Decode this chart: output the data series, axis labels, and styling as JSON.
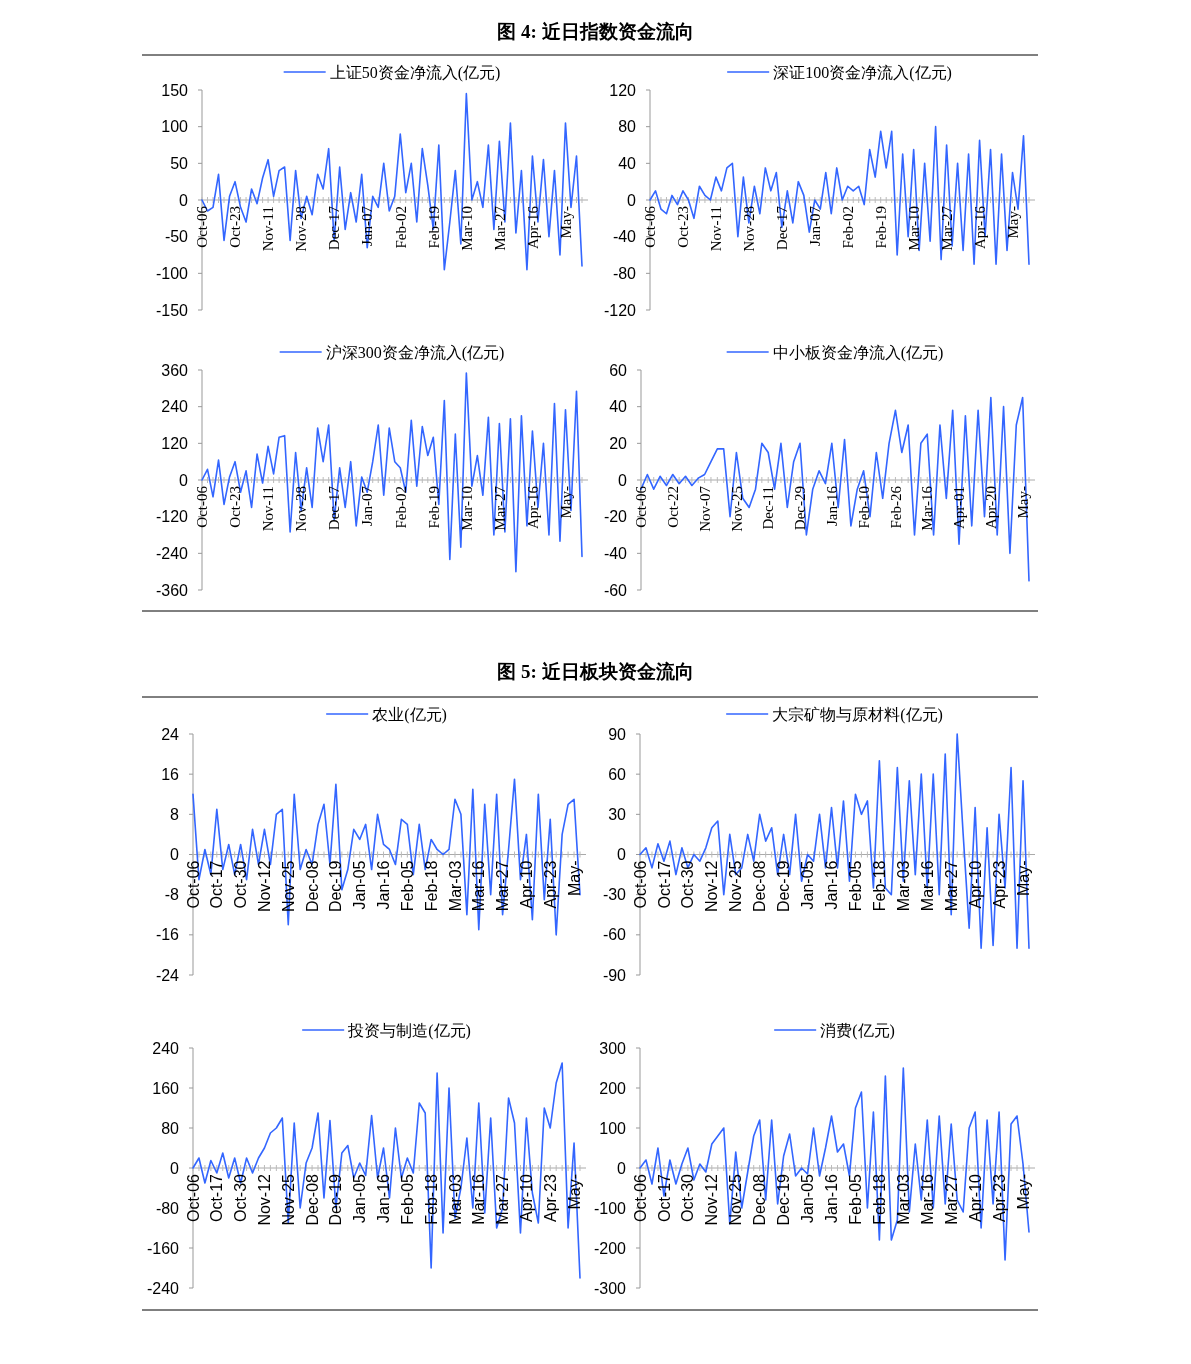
{
  "chart_data": [
    {
      "type": "line",
      "title": "图 4: 近日指数资金流向",
      "legend": "top",
      "ylim": [
        -150,
        150
      ],
      "yticks": [
        -150,
        -100,
        -50,
        0,
        50,
        100,
        150
      ],
      "categories": [
        "Oct-06",
        null,
        null,
        null,
        null,
        null,
        "Oct-23",
        null,
        null,
        null,
        null,
        null,
        "Nov-11",
        null,
        null,
        null,
        null,
        null,
        "Nov-28",
        null,
        null,
        null,
        null,
        null,
        "Dec-17",
        null,
        null,
        null,
        null,
        null,
        "Jan-07",
        null,
        null,
        null,
        null,
        null,
        "Feb-02",
        null,
        null,
        null,
        null,
        null,
        "Feb-19",
        null,
        null,
        null,
        null,
        null,
        "Mar-10",
        null,
        null,
        null,
        null,
        null,
        "Mar-27",
        null,
        null,
        null,
        null,
        null,
        "Apr-16",
        null,
        null,
        null,
        null,
        null,
        "May-",
        null,
        null,
        null
      ],
      "series": [
        {
          "name": "上证50资金净流入(亿元)",
          "color": "#3366ff",
          "values": [
            0,
            -15,
            -10,
            35,
            -55,
            5,
            25,
            -10,
            -30,
            15,
            -5,
            30,
            55,
            5,
            40,
            45,
            -55,
            40,
            -25,
            5,
            -20,
            35,
            15,
            70,
            -55,
            45,
            -40,
            10,
            -30,
            35,
            -65,
            5,
            -10,
            50,
            -15,
            5,
            90,
            10,
            50,
            -30,
            70,
            20,
            -40,
            75,
            -95,
            -30,
            40,
            -60,
            145,
            0,
            25,
            -10,
            75,
            -40,
            80,
            -30,
            105,
            -45,
            40,
            -95,
            60,
            -30,
            55,
            -50,
            40,
            -75,
            105,
            -10,
            60,
            -90
          ]
        }
      ]
    },
    {
      "type": "line",
      "legend": "top",
      "ylim": [
        -120,
        120
      ],
      "yticks": [
        -120,
        -80,
        -40,
        0,
        40,
        80,
        120
      ],
      "categories": [
        "Oct-06",
        null,
        null,
        null,
        null,
        null,
        "Oct-23",
        null,
        null,
        null,
        null,
        null,
        "Nov-11",
        null,
        null,
        null,
        null,
        null,
        "Nov-28",
        null,
        null,
        null,
        null,
        null,
        "Dec-17",
        null,
        null,
        null,
        null,
        null,
        "Jan-07",
        null,
        null,
        null,
        null,
        null,
        "Feb-02",
        null,
        null,
        null,
        null,
        null,
        "Feb-19",
        null,
        null,
        null,
        null,
        null,
        "Mar-10",
        null,
        null,
        null,
        null,
        null,
        "Mar-27",
        null,
        null,
        null,
        null,
        null,
        "Apr-16",
        null,
        null,
        null,
        null,
        null,
        "May-",
        null,
        null,
        null
      ],
      "series": [
        {
          "name": "深证100资金净流入(亿元)",
          "color": "#3366ff",
          "values": [
            0,
            10,
            -10,
            -15,
            5,
            -5,
            10,
            0,
            -20,
            15,
            5,
            0,
            25,
            10,
            35,
            40,
            -40,
            25,
            -25,
            15,
            -15,
            35,
            10,
            30,
            -30,
            10,
            -25,
            20,
            5,
            -35,
            0,
            -10,
            30,
            -15,
            35,
            0,
            15,
            10,
            15,
            -5,
            55,
            25,
            75,
            35,
            75,
            -60,
            50,
            -40,
            55,
            -55,
            40,
            -45,
            80,
            -65,
            60,
            -50,
            40,
            -55,
            50,
            -70,
            65,
            -40,
            55,
            -70,
            50,
            -55,
            30,
            -10,
            70,
            -70
          ]
        }
      ]
    },
    {
      "type": "line",
      "legend": "top",
      "ylim": [
        -360,
        360
      ],
      "yticks": [
        -360,
        -240,
        -120,
        0,
        120,
        240,
        360
      ],
      "categories": [
        "Oct-06",
        null,
        null,
        null,
        null,
        null,
        "Oct-23",
        null,
        null,
        null,
        null,
        null,
        "Nov-11",
        null,
        null,
        null,
        null,
        null,
        "Nov-28",
        null,
        null,
        null,
        null,
        null,
        "Dec-17",
        null,
        null,
        null,
        null,
        null,
        "Jan-07",
        null,
        null,
        null,
        null,
        null,
        "Feb-02",
        null,
        null,
        null,
        null,
        null,
        "Feb-19",
        null,
        null,
        null,
        null,
        null,
        "Mar-10",
        null,
        null,
        null,
        null,
        null,
        "Mar-27",
        null,
        null,
        null,
        null,
        null,
        "Apr-16",
        null,
        null,
        null,
        null,
        null,
        "May-",
        null,
        null,
        null
      ],
      "series": [
        {
          "name": "沪深300资金净流入(亿元)",
          "color": "#3366ff",
          "values": [
            0,
            35,
            -55,
            65,
            -80,
            10,
            60,
            -40,
            30,
            -90,
            85,
            -10,
            110,
            20,
            140,
            145,
            -170,
            90,
            -100,
            40,
            -90,
            170,
            60,
            180,
            -130,
            40,
            -90,
            60,
            -150,
            10,
            -40,
            60,
            180,
            -50,
            170,
            60,
            40,
            -40,
            195,
            -20,
            175,
            80,
            140,
            -80,
            260,
            -260,
            150,
            -220,
            350,
            -20,
            80,
            -50,
            205,
            -180,
            185,
            -170,
            200,
            -300,
            210,
            -150,
            160,
            -90,
            120,
            -180,
            250,
            -200,
            230,
            -100,
            290,
            -250
          ]
        }
      ]
    },
    {
      "type": "line",
      "legend": "top",
      "ylim": [
        -60,
        60
      ],
      "yticks": [
        -60,
        -40,
        -20,
        0,
        20,
        40,
        60
      ],
      "categories": [
        "Oct-06",
        null,
        null,
        null,
        null,
        "Oct-22",
        null,
        null,
        null,
        null,
        "Nov-07",
        null,
        null,
        null,
        null,
        "Nov-25",
        null,
        null,
        null,
        null,
        "Dec-11",
        null,
        null,
        null,
        null,
        "Dec-29",
        null,
        null,
        null,
        null,
        "Jan-16",
        null,
        null,
        null,
        null,
        "Feb-10",
        null,
        null,
        null,
        null,
        "Feb-26",
        null,
        null,
        null,
        null,
        "Mar-16",
        null,
        null,
        null,
        null,
        "Apr-01",
        null,
        null,
        null,
        null,
        "Apr-20",
        null,
        null,
        null,
        null,
        "May-",
        null
      ],
      "series": [
        {
          "name": "中小板资金净流入(亿元)",
          "color": "#3366ff",
          "values": [
            -5,
            3,
            -5,
            2,
            -3,
            3,
            -2,
            2,
            -3,
            1,
            3,
            10,
            17,
            17,
            -20,
            15,
            -10,
            -15,
            -5,
            20,
            15,
            -5,
            20,
            -15,
            10,
            20,
            -30,
            -5,
            5,
            -2,
            20,
            -15,
            22,
            -25,
            -5,
            5,
            -20,
            15,
            -10,
            20,
            38,
            15,
            30,
            -30,
            20,
            25,
            -30,
            30,
            -10,
            38,
            -35,
            35,
            -25,
            38,
            -20,
            45,
            -30,
            40,
            -40,
            30,
            45,
            -55
          ]
        }
      ]
    },
    {
      "type": "line",
      "title": "图 5: 近日板块资金流向",
      "legend": "top",
      "ylim": [
        -24,
        24
      ],
      "yticks": [
        -24,
        -16,
        -8,
        0,
        8,
        16,
        24
      ],
      "categories": [
        "Oct-06",
        null,
        null,
        null,
        "Oct-17",
        null,
        null,
        null,
        "Oct-30",
        null,
        null,
        null,
        "Nov-12",
        null,
        null,
        null,
        "Nov-25",
        null,
        null,
        null,
        "Dec-08",
        null,
        null,
        null,
        "Dec-19",
        null,
        null,
        null,
        "Jan-05",
        null,
        null,
        null,
        "Jan-16",
        null,
        null,
        null,
        "Feb-05",
        null,
        null,
        null,
        "Feb-18",
        null,
        null,
        null,
        "Mar-03",
        null,
        null,
        null,
        "Mar-16",
        null,
        null,
        null,
        "Mar-27",
        null,
        null,
        null,
        "Apr-10",
        null,
        null,
        null,
        "Apr-23",
        null,
        null,
        null,
        "May-",
        null
      ],
      "series": [
        {
          "name": "农业(亿元)",
          "color": "#3366ff",
          "values": [
            12,
            -5,
            1,
            -4,
            9,
            -3,
            2,
            -4,
            2,
            -5,
            5,
            -2,
            5,
            -2,
            8,
            9,
            -14,
            12,
            -3,
            1,
            -2,
            6,
            10,
            -2,
            14,
            -7,
            -3,
            5,
            3,
            6,
            -3,
            8,
            2,
            1,
            -2,
            7,
            6,
            -4,
            6,
            -3,
            3,
            1,
            0,
            1,
            11,
            8,
            -12,
            13,
            -15,
            10,
            -8,
            12,
            -12,
            1,
            15,
            -5,
            4,
            -13,
            12,
            -9,
            7,
            -16,
            4,
            10,
            11,
            -8
          ]
        }
      ]
    },
    {
      "type": "line",
      "legend": "top",
      "ylim": [
        -90,
        90
      ],
      "yticks": [
        -90,
        -60,
        -30,
        0,
        30,
        60,
        90
      ],
      "categories": [
        "Oct-06",
        null,
        null,
        null,
        "Oct-17",
        null,
        null,
        null,
        "Oct-30",
        null,
        null,
        null,
        "Nov-12",
        null,
        null,
        null,
        "Nov-25",
        null,
        null,
        null,
        "Dec-08",
        null,
        null,
        null,
        "Dec-19",
        null,
        null,
        null,
        "Jan-05",
        null,
        null,
        null,
        "Jan-16",
        null,
        null,
        null,
        "Feb-05",
        null,
        null,
        null,
        "Feb-18",
        null,
        null,
        null,
        "Mar-03",
        null,
        null,
        null,
        "Mar-16",
        null,
        null,
        null,
        "Mar-27",
        null,
        null,
        null,
        "Apr-10",
        null,
        null,
        null,
        "Apr-23",
        null,
        null,
        null,
        "May-",
        null
      ],
      "series": [
        {
          "name": "大宗矿物与原材料(亿元)",
          "color": "#3366ff",
          "values": [
            0,
            5,
            -10,
            8,
            -5,
            10,
            -15,
            5,
            -10,
            0,
            -5,
            5,
            20,
            25,
            -30,
            15,
            -15,
            -10,
            15,
            -5,
            30,
            10,
            20,
            -15,
            15,
            -15,
            30,
            -20,
            0,
            -5,
            30,
            -10,
            35,
            -10,
            40,
            -20,
            45,
            30,
            40,
            -25,
            70,
            -25,
            -30,
            65,
            -20,
            55,
            -15,
            60,
            -25,
            60,
            -30,
            75,
            -45,
            90,
            15,
            -55,
            35,
            -70,
            20,
            -68,
            30,
            -25,
            65,
            -70,
            55,
            -70
          ]
        }
      ]
    },
    {
      "type": "line",
      "legend": "top",
      "ylim": [
        -240,
        240
      ],
      "yticks": [
        -240,
        -160,
        -80,
        0,
        80,
        160,
        240
      ],
      "categories": [
        "Oct-06",
        null,
        null,
        null,
        "Oct-17",
        null,
        null,
        null,
        "Oct-30",
        null,
        null,
        null,
        "Nov-12",
        null,
        null,
        null,
        "Nov-25",
        null,
        null,
        null,
        "Dec-08",
        null,
        null,
        null,
        "Dec-19",
        null,
        null,
        null,
        "Jan-05",
        null,
        null,
        null,
        "Jan-16",
        null,
        null,
        null,
        "Feb-05",
        null,
        null,
        null,
        "Feb-18",
        null,
        null,
        null,
        "Mar-03",
        null,
        null,
        null,
        "Mar-16",
        null,
        null,
        null,
        "Mar-27",
        null,
        null,
        null,
        "Apr-10",
        null,
        null,
        null,
        "Apr-23",
        null,
        null,
        null,
        "May-",
        null
      ],
      "series": [
        {
          "name": "投资与制造(亿元)",
          "color": "#3366ff",
          "values": [
            0,
            20,
            -30,
            15,
            -10,
            30,
            -20,
            20,
            -30,
            20,
            -10,
            20,
            40,
            70,
            80,
            100,
            -110,
            90,
            -80,
            10,
            40,
            110,
            -60,
            95,
            -80,
            30,
            45,
            -20,
            10,
            -15,
            105,
            -20,
            40,
            -60,
            80,
            -20,
            20,
            -10,
            130,
            110,
            -200,
            190,
            -130,
            160,
            -100,
            -40,
            60,
            -80,
            130,
            -90,
            100,
            -120,
            -80,
            140,
            90,
            -130,
            100,
            -50,
            -110,
            120,
            80,
            170,
            210,
            -120,
            50,
            -220
          ]
        }
      ]
    },
    {
      "type": "line",
      "legend": "top",
      "ylim": [
        -300,
        300
      ],
      "yticks": [
        -300,
        -200,
        -100,
        0,
        100,
        200,
        300
      ],
      "categories": [
        "Oct-06",
        null,
        null,
        null,
        "Oct-17",
        null,
        null,
        null,
        "Oct-30",
        null,
        null,
        null,
        "Nov-12",
        null,
        null,
        null,
        "Nov-25",
        null,
        null,
        null,
        "Dec-08",
        null,
        null,
        null,
        "Dec-19",
        null,
        null,
        null,
        "Jan-05",
        null,
        null,
        null,
        "Jan-16",
        null,
        null,
        null,
        "Feb-05",
        null,
        null,
        null,
        "Feb-18",
        null,
        null,
        null,
        "Mar-03",
        null,
        null,
        null,
        "Mar-16",
        null,
        null,
        null,
        "Mar-27",
        null,
        null,
        null,
        "Apr-10",
        null,
        null,
        null,
        "Apr-23",
        null,
        null,
        null,
        "May-",
        null
      ],
      "series": [
        {
          "name": "消费(亿元)",
          "color": "#3366ff",
          "values": [
            0,
            20,
            -40,
            50,
            -70,
            20,
            -40,
            10,
            50,
            -30,
            10,
            -10,
            60,
            80,
            100,
            -140,
            40,
            -100,
            -10,
            80,
            120,
            -80,
            120,
            -90,
            30,
            85,
            -20,
            0,
            -15,
            100,
            -20,
            50,
            130,
            40,
            60,
            -20,
            150,
            190,
            -100,
            140,
            -180,
            230,
            -180,
            -130,
            250,
            -110,
            60,
            -80,
            120,
            -100,
            130,
            -90,
            110,
            -80,
            -110,
            100,
            140,
            -150,
            120,
            -90,
            140,
            -230,
            110,
            130,
            10,
            -160
          ]
        }
      ]
    }
  ]
}
